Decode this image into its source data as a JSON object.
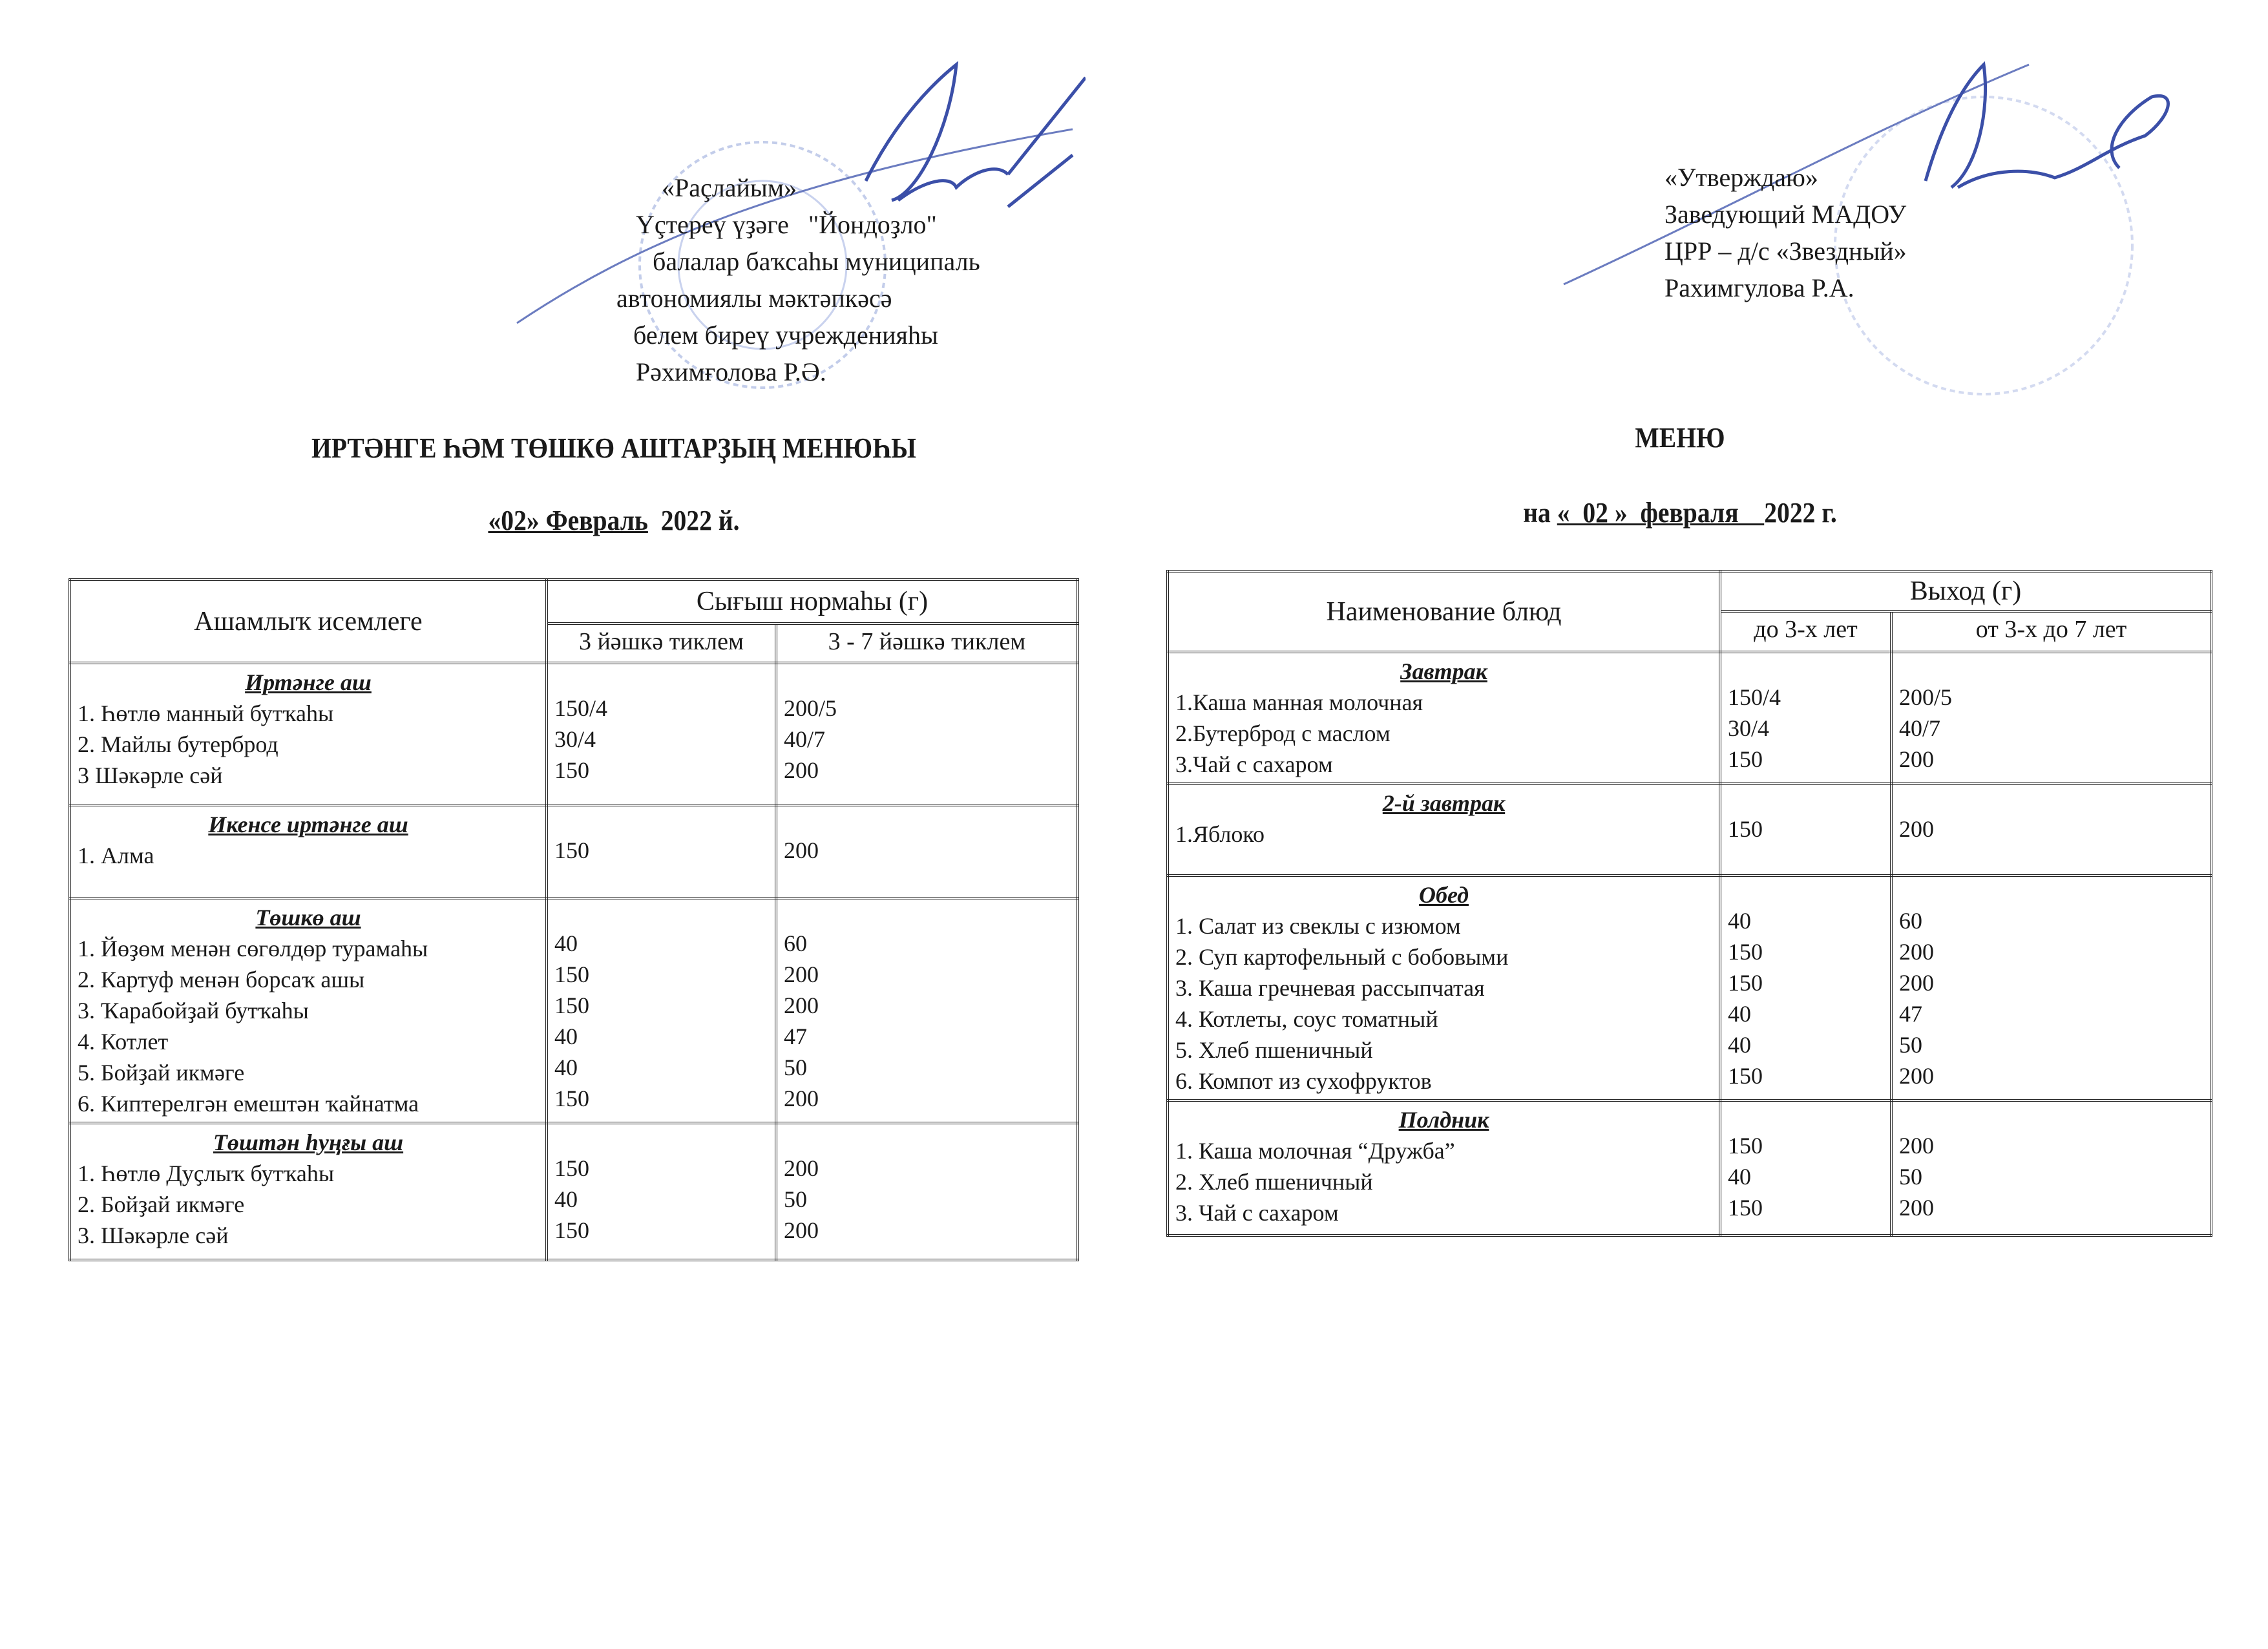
{
  "left": {
    "approval": [
      "«Раçлайым»",
      "Үçтереү үҙәге   \"Йондоҙло\"",
      "   балалар баҡсаһы муниципаль",
      "автономиялы мәктәпкәсә",
      " белем биреү учрежденияһы",
      " Рәхимғолова Р.Ә."
    ],
    "title": "ИРТӘНГЕ ҺӘМ ТӨШКӨ АШТАРҘЫҢ МЕНЮҺЫ",
    "date_underlined": "«02» Февраль",
    "date_rest": "  2022 й.",
    "table": {
      "col_name": "Ашамлыҡ исемлеге",
      "col_group": "Сығыш нормаһы   (г)",
      "col_a": "3 йәшкә тиклем",
      "col_b": "3 - 7 йәшкә тиклем",
      "sections": [
        {
          "meal": "Иртәнге  аш",
          "items": [
            "1. Һөтлө манный  бутҡаһы",
            "2. Майлы  бутерброд",
            "3  Шәкәрле сәй"
          ],
          "a": [
            "150/4",
            "30/4",
            "150"
          ],
          "b": [
            "200/5",
            "40/7",
            "200"
          ]
        },
        {
          "meal": "Икенсе иртәнге аш",
          "items": [
            "1. Алма"
          ],
          "a": [
            "150"
          ],
          "b": [
            "200"
          ]
        },
        {
          "meal": "Төшкө аш",
          "items": [
            "1. Йөҙөм менән сөгөлдөр турамаһы",
            "2. Картуф менән борсаҡ ашы",
            "3. Ҡарабойҙай бутҡаһы",
            "4. Котлет",
            "5. Бойҙай  икмәге",
            "6. Киптерелгән емештән ҡайнатма"
          ],
          "a": [
            "40",
            "150",
            "150",
            "40",
            "40",
            "150"
          ],
          "b": [
            "60",
            "200",
            "200",
            "47",
            "50",
            "200"
          ]
        },
        {
          "meal": "Төштән һуңғы аш",
          "items": [
            "1. Һөтлө Дуҫлыҡ бутҡаһы",
            "2. Бойҙай икмәге",
            "3. Шәкәрле сәй"
          ],
          "a": [
            "150",
            "40",
            "150"
          ],
          "b": [
            "200",
            "50",
            "200"
          ]
        }
      ]
    }
  },
  "right": {
    "approval": [
      "«Утверждаю»",
      "Заведующий МАДОУ",
      "ЦРР – д/с «Звездный»",
      "Рахимгулова Р.А."
    ],
    "title": "МЕНЮ",
    "date_prefix": "на ",
    "date_underlined": "«  02 »  февраля    ",
    "date_rest": "2022 г.",
    "table": {
      "col_name": "Наименование блюд",
      "col_group": "Выход   (г)",
      "col_a": "до 3-х лет",
      "col_b": "от 3-х до 7 лет",
      "sections": [
        {
          "meal": "Завтрак",
          "items": [
            "1.Каша  манная  молочная",
            "2.Бутерброд  с маслом",
            "3.Чай с сахаром"
          ],
          "a": [
            "150/4",
            "30/4",
            "150"
          ],
          "b": [
            "200/5",
            "40/7",
            "200"
          ]
        },
        {
          "meal": "2-й завтрак",
          "items": [
            "1.Яблоко"
          ],
          "a": [
            "150"
          ],
          "b": [
            "200"
          ]
        },
        {
          "meal": "Обед",
          "items": [
            "1. Салат из свеклы с изюмом",
            "2. Суп картофельный с бобовыми",
            "3. Каша гречневая рассыпчатая",
            "4. Котлеты, соус томатный",
            "5. Хлеб пшеничный",
            "6. Компот из сухофруктов"
          ],
          "a": [
            "40",
            "150",
            "150",
            "40",
            "40",
            "150"
          ],
          "b": [
            "60",
            "200",
            "200",
            "47",
            "50",
            "200"
          ]
        },
        {
          "meal": "Полдник",
          "items": [
            "1. Каша молочная “Дружба”",
            "2. Хлеб пшеничный",
            "3. Чай с сахаром"
          ],
          "a": [
            "150",
            "40",
            "150"
          ],
          "b": [
            "200",
            "50",
            "200"
          ]
        }
      ]
    }
  },
  "colors": {
    "ink": "#1a1a1a",
    "signature": "#3b4fa8",
    "stamp": "#aab8e0"
  }
}
